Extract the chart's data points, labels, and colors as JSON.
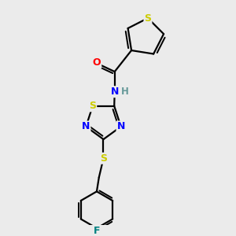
{
  "bg_color": "#ebebeb",
  "atom_colors": {
    "S": "#cccc00",
    "N": "#0000ff",
    "O": "#ff0000",
    "F": "#008080",
    "C": "#000000",
    "H": "#669999"
  },
  "bond_color": "#000000",
  "bond_width": 1.6,
  "figsize": [
    3.0,
    3.0
  ],
  "dpi": 100
}
